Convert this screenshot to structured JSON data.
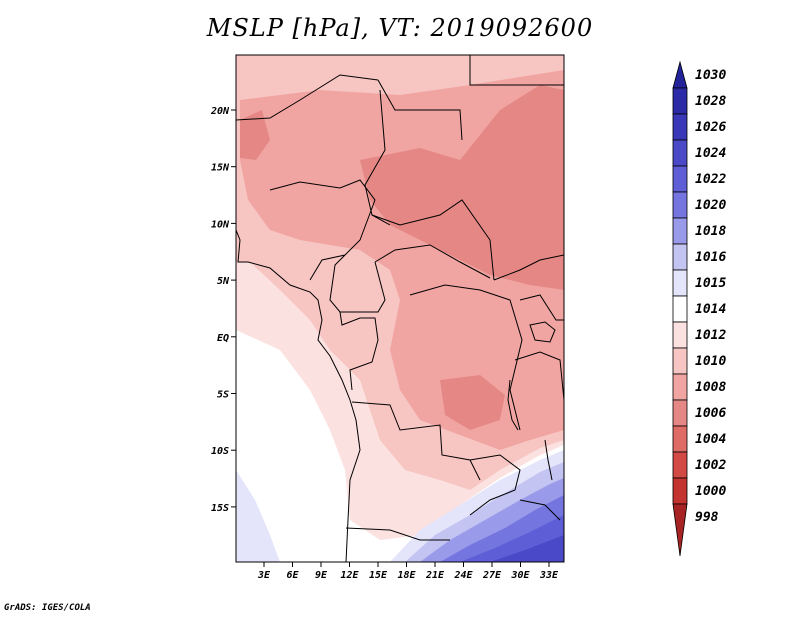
{
  "title": "MSLP [hPa], VT: 2019092600",
  "credit": "GrADS: IGES/COLA",
  "lon_ticks": [
    "3E",
    "6E",
    "9E",
    "12E",
    "15E",
    "18E",
    "21E",
    "24E",
    "27E",
    "30E",
    "33E"
  ],
  "lat_ticks": [
    "20N",
    "15N",
    "10N",
    "5N",
    "EQ",
    "5S",
    "10S",
    "15S"
  ],
  "colorbar": {
    "levels": [
      {
        "label": "1030",
        "color": "#24249a"
      },
      {
        "label": "1028",
        "color": "#2b2ba8"
      },
      {
        "label": "1026",
        "color": "#3838b8"
      },
      {
        "label": "1024",
        "color": "#4a4ac8"
      },
      {
        "label": "1022",
        "color": "#5e5ed6"
      },
      {
        "label": "1020",
        "color": "#7575e0"
      },
      {
        "label": "1018",
        "color": "#9a9aea"
      },
      {
        "label": "1016",
        "color": "#c4c4f3"
      },
      {
        "label": "1015",
        "color": "#e4e4fa"
      },
      {
        "label": "1014",
        "color": "#ffffff"
      },
      {
        "label": "1012",
        "color": "#fbe1df"
      },
      {
        "label": "1010",
        "color": "#f7c5c2"
      },
      {
        "label": "1008",
        "color": "#f1a5a2"
      },
      {
        "label": "1006",
        "color": "#e58885"
      },
      {
        "label": "1004",
        "color": "#df6b66"
      },
      {
        "label": "1002",
        "color": "#d34a45"
      },
      {
        "label": "1000",
        "color": "#c33430"
      },
      {
        "label": "998",
        "color": "#a82424"
      }
    ]
  }
}
